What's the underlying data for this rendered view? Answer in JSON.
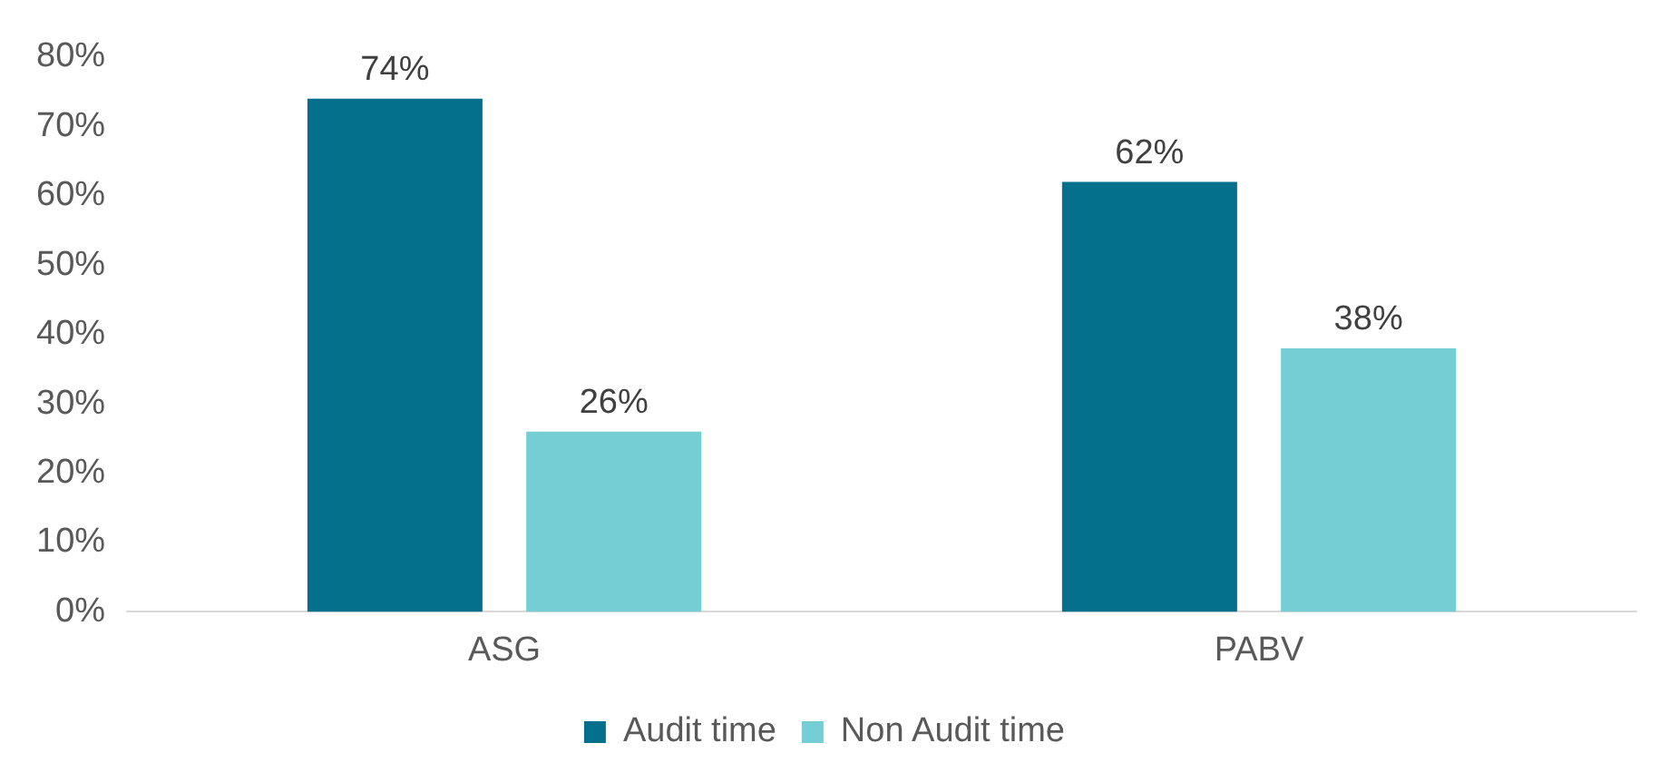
{
  "chart_data": {
    "type": "bar",
    "categories": [
      "ASG",
      "PABV"
    ],
    "series": [
      {
        "name": "Audit time",
        "color": "#05708c",
        "values": [
          74,
          62
        ],
        "value_labels": [
          "74%",
          "62%"
        ]
      },
      {
        "name": "Non Audit time",
        "color": "#75ced3",
        "values": [
          26,
          38
        ],
        "value_labels": [
          "26%",
          "38%"
        ]
      }
    ],
    "ylim": [
      0,
      80
    ],
    "yticks": [
      {
        "value": 0,
        "label": "0%"
      },
      {
        "value": 10,
        "label": "10%"
      },
      {
        "value": 20,
        "label": "20%"
      },
      {
        "value": 30,
        "label": "30%"
      },
      {
        "value": 40,
        "label": "40%"
      },
      {
        "value": 50,
        "label": "50%"
      },
      {
        "value": 60,
        "label": "60%"
      },
      {
        "value": 70,
        "label": "70%"
      },
      {
        "value": 80,
        "label": "80%"
      }
    ],
    "grid": false,
    "legend": "bottom"
  }
}
